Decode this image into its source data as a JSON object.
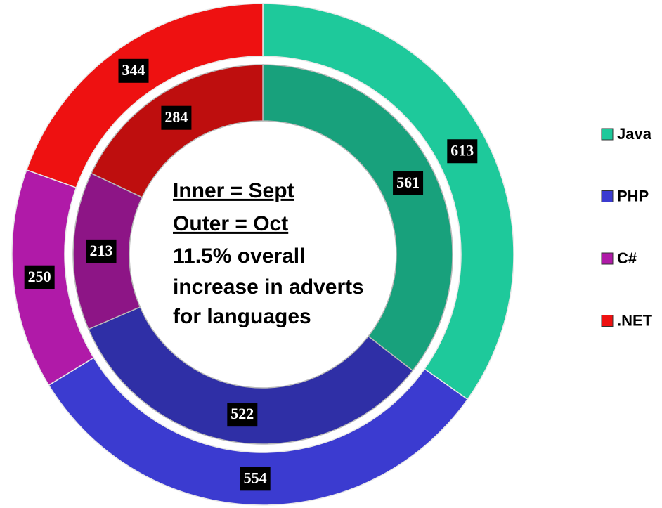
{
  "chart_data": {
    "type": "donut",
    "categories": [
      "Java",
      "PHP",
      "C#",
      ".NET"
    ],
    "colors": [
      "#1ec99b",
      "#3b3bd0",
      "#b01aa8",
      "#ee1111"
    ],
    "series": [
      {
        "ring": "inner",
        "values": [
          561,
          522,
          213,
          284
        ]
      },
      {
        "ring": "outer",
        "values": [
          613,
          554,
          250,
          344
        ]
      }
    ],
    "annotation": [
      "Inner = Sept",
      "Outer = Oct",
      "11.5% overall",
      "increase in adverts",
      "for languages"
    ],
    "legend": "right"
  }
}
